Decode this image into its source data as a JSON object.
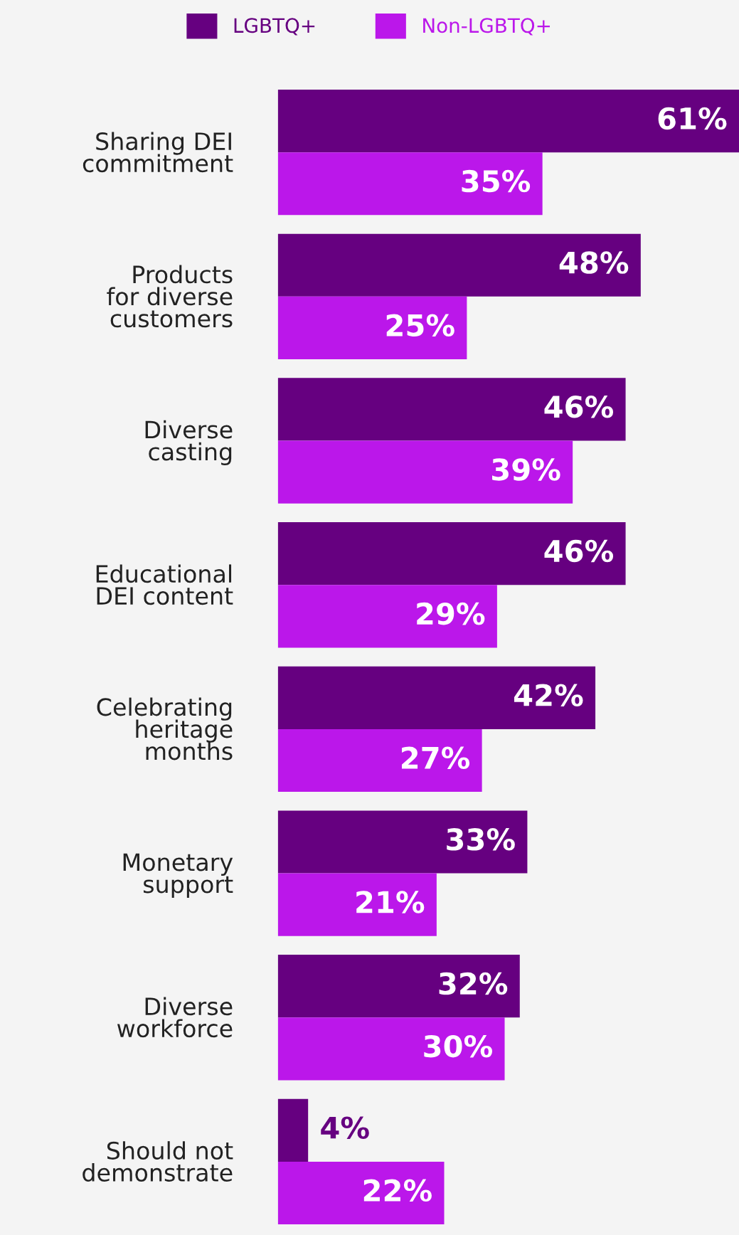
{
  "chart_data": {
    "type": "bar",
    "orientation": "horizontal",
    "categories": [
      "Sharing DEI\ncommitment",
      "Products\nfor diverse\ncustomers",
      "Diverse\ncasting",
      "Educational\nDEI content",
      "Celebrating\nheritage\nmonths",
      "Monetary\nsupport",
      "Diverse\nworkforce",
      "Should not\ndemonstrate"
    ],
    "series": [
      {
        "name": "LGBTQ+",
        "color": "#660080",
        "values": [
          61,
          48,
          46,
          46,
          42,
          33,
          32,
          4
        ],
        "value_labels": [
          "61%",
          "48%",
          "46%",
          "46%",
          "42%",
          "33%",
          "32%",
          "4%"
        ]
      },
      {
        "name": "Non-LGBTQ+",
        "color": "#bb17ea",
        "values": [
          35,
          25,
          39,
          29,
          27,
          21,
          30,
          22
        ],
        "value_labels": [
          "35%",
          "25%",
          "39%",
          "29%",
          "27%",
          "21%",
          "30%",
          "22%"
        ]
      }
    ],
    "legend": "top",
    "grid": false
  }
}
